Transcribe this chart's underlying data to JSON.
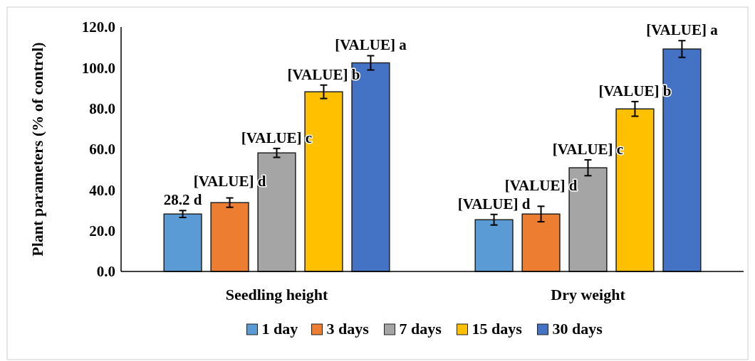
{
  "chart_data": {
    "type": "bar",
    "ylabel": "Plant parameters (% of control)",
    "categories": [
      "Seedling height",
      "Dry weight"
    ],
    "series": [
      {
        "name": "1 day",
        "color": "#5b9bd5",
        "values": [
          28.2,
          25.4
        ],
        "errors": [
          1.7,
          2.6
        ],
        "value_labels": [
          "28.2 d",
          "[VALUE] d"
        ]
      },
      {
        "name": "3 days",
        "color": "#ed7d31",
        "values": [
          33.8,
          28.2
        ],
        "errors": [
          2.3,
          3.8
        ],
        "value_labels": [
          "[VALUE] d",
          "[VALUE] d"
        ]
      },
      {
        "name": "7 days",
        "color": "#a5a5a5",
        "values": [
          58.2,
          50.9
        ],
        "errors": [
          2.2,
          3.9
        ],
        "value_labels": [
          "[VALUE] c",
          "[VALUE] c"
        ]
      },
      {
        "name": "15 days",
        "color": "#ffc000",
        "values": [
          88.2,
          79.8
        ],
        "errors": [
          3.3,
          3.6
        ],
        "value_labels": [
          "[VALUE] b",
          "[VALUE] b"
        ]
      },
      {
        "name": "30 days",
        "color": "#4472c4",
        "values": [
          102.4,
          109.2
        ],
        "errors": [
          3.5,
          4.1
        ],
        "value_labels": [
          "[VALUE] a",
          "[VALUE] a"
        ]
      }
    ],
    "ylim": [
      0,
      120
    ],
    "yticks": [
      {
        "value": 0,
        "label": "0.0"
      },
      {
        "value": 20,
        "label": "20.0"
      },
      {
        "value": 40,
        "label": "40.0"
      },
      {
        "value": 60,
        "label": "60.0"
      },
      {
        "value": 80,
        "label": "80.0"
      },
      {
        "value": 100,
        "label": "100.0"
      },
      {
        "value": 120,
        "label": "120.0"
      }
    ],
    "legend": "bottom"
  }
}
